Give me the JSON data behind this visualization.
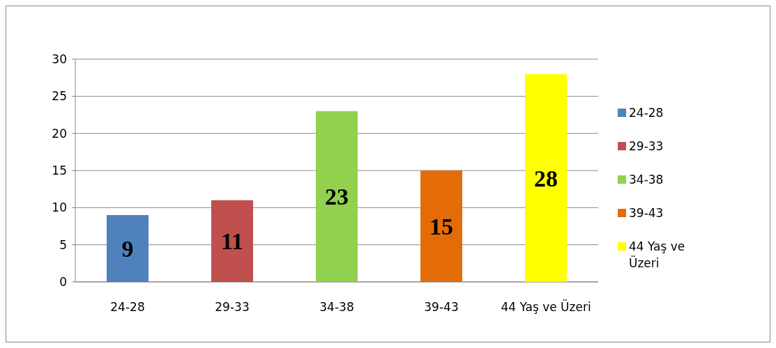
{
  "chart_data": {
    "type": "bar",
    "categories": [
      "24-28",
      "29-33",
      "34-38",
      "39-43",
      "44 Yaş ve Üzeri"
    ],
    "series": [
      {
        "name": "24-28",
        "color": "#4f81bd",
        "values": [
          9,
          null,
          null,
          null,
          null
        ]
      },
      {
        "name": "29-33",
        "color": "#c0504d",
        "values": [
          null,
          11,
          null,
          null,
          null
        ]
      },
      {
        "name": "34-38",
        "color": "#92d050",
        "values": [
          null,
          null,
          23,
          null,
          null
        ]
      },
      {
        "name": "39-43",
        "color": "#e36c09",
        "values": [
          null,
          null,
          null,
          15,
          null
        ]
      },
      {
        "name": "44 Yaş ve Üzeri",
        "color": "#ffff00",
        "values": [
          null,
          null,
          null,
          null,
          28
        ]
      }
    ],
    "ylim": [
      0,
      30
    ],
    "yticks": [
      0,
      5,
      10,
      15,
      20,
      25,
      30
    ],
    "grid": "y",
    "legend": "right",
    "data_labels": true
  }
}
